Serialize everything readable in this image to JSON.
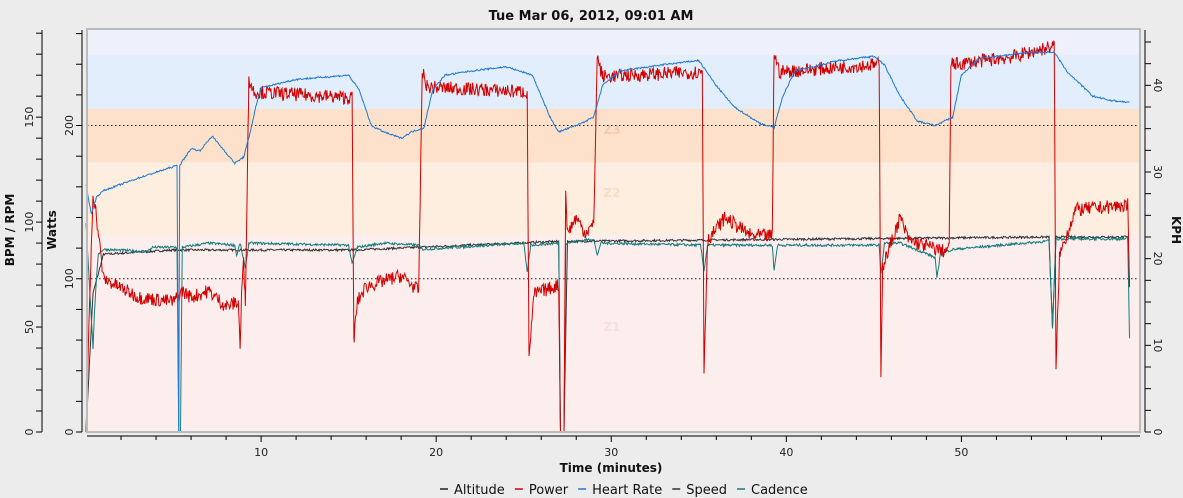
{
  "chart_data": {
    "type": "line",
    "title": "Tue Mar 06, 2012, 09:01 AM",
    "xlabel": "Time (minutes)",
    "xlim": [
      0,
      60.2
    ],
    "xticks": [
      10,
      20,
      30,
      40,
      50
    ],
    "axes": {
      "bpm": {
        "label": "BPM / RPM",
        "ylim": [
          0,
          192
        ],
        "ticks": [
          0,
          50,
          100,
          150
        ]
      },
      "watts": {
        "label": "Watts",
        "ylim": [
          0,
          263
        ],
        "ticks": [
          0,
          100,
          200
        ]
      },
      "kph": {
        "label": "KPH",
        "ylim": [
          0,
          46.5
        ],
        "ticks": [
          0,
          10,
          20,
          30,
          40
        ]
      }
    },
    "reference_lines_watts": [
      100,
      200
    ],
    "zones_watts": [
      {
        "name": "Z1",
        "from": 0,
        "to": 129,
        "color": "#fdeeee"
      },
      {
        "name": "Z2",
        "from": 129,
        "to": 176,
        "color": "#fdeee0"
      },
      {
        "name": "Z3",
        "from": 176,
        "to": 211,
        "color": "#fde1cb"
      },
      {
        "name": "Z4",
        "from": 211,
        "to": 246,
        "color": "#e2eefb"
      },
      {
        "name": "Z5",
        "from": 246,
        "to": 263,
        "color": "#eef0fc"
      }
    ],
    "legend": [
      "Altitude",
      "Power",
      "Heart Rate",
      "Speed",
      "Cadence"
    ],
    "legend_position": "bottom",
    "series": [
      {
        "name": "Altitude",
        "axis": "kph",
        "color": "#222222",
        "points": []
      },
      {
        "name": "Power",
        "axis": "watts",
        "color": "#d40000",
        "points": [
          [
            0,
            0
          ],
          [
            0.3,
            120
          ],
          [
            0.4,
            155
          ],
          [
            0.5,
            150
          ],
          [
            1,
            100
          ],
          [
            3,
            88
          ],
          [
            5,
            85
          ],
          [
            5.5,
            92
          ],
          [
            6,
            88
          ],
          [
            7,
            92
          ],
          [
            8,
            82
          ],
          [
            8.7,
            85
          ],
          [
            8.8,
            55
          ],
          [
            8.9,
            95
          ],
          [
            9.0,
            110
          ],
          [
            9.1,
            85
          ],
          [
            9.3,
            230
          ],
          [
            9.6,
            222
          ],
          [
            15.2,
            218
          ],
          [
            15.3,
            60
          ],
          [
            15.5,
            85
          ],
          [
            16,
            95
          ],
          [
            18,
            102
          ],
          [
            19,
            92
          ],
          [
            19.2,
            235
          ],
          [
            19.5,
            225
          ],
          [
            25.2,
            222
          ],
          [
            25.3,
            50
          ],
          [
            25.6,
            90
          ],
          [
            27,
            96
          ],
          [
            27.1,
            0
          ],
          [
            27.3,
            0
          ],
          [
            27.4,
            160
          ],
          [
            27.5,
            130
          ],
          [
            28,
            140
          ],
          [
            28.5,
            130
          ],
          [
            29,
            135
          ],
          [
            29.2,
            245
          ],
          [
            29.5,
            232
          ],
          [
            35.2,
            235
          ],
          [
            35.3,
            40
          ],
          [
            35.5,
            125
          ],
          [
            36.5,
            140
          ],
          [
            38,
            128
          ],
          [
            39.2,
            128
          ],
          [
            39.3,
            248
          ],
          [
            39.6,
            235
          ],
          [
            45.3,
            240
          ],
          [
            45.4,
            40
          ],
          [
            45.5,
            108
          ],
          [
            46.5,
            140
          ],
          [
            47,
            125
          ],
          [
            49,
            118
          ],
          [
            49.3,
            120
          ],
          [
            49.4,
            240
          ],
          [
            49.7,
            240
          ],
          [
            53,
            245
          ],
          [
            55.3,
            252
          ],
          [
            55.4,
            40
          ],
          [
            55.6,
            115
          ],
          [
            56.5,
            145
          ],
          [
            59.5,
            148
          ],
          [
            59.6,
            90
          ]
        ]
      },
      {
        "name": "Heart Rate",
        "axis": "bpm",
        "color": "#1f78d1",
        "points": [
          [
            0,
            118
          ],
          [
            0.3,
            104
          ],
          [
            0.6,
            112
          ],
          [
            1,
            115
          ],
          [
            3,
            121
          ],
          [
            5.2,
            127
          ],
          [
            5.3,
            0
          ],
          [
            5.35,
            127
          ],
          [
            6,
            135
          ],
          [
            6.5,
            134
          ],
          [
            7.2,
            141
          ],
          [
            8.5,
            128
          ],
          [
            9,
            131
          ],
          [
            9.3,
            140
          ],
          [
            9.7,
            155
          ],
          [
            10,
            164
          ],
          [
            12,
            168
          ],
          [
            15,
            170
          ],
          [
            15.6,
            163
          ],
          [
            16.3,
            146
          ],
          [
            17,
            143
          ],
          [
            18,
            140
          ],
          [
            18.6,
            143
          ],
          [
            19.3,
            145
          ],
          [
            19.8,
            163
          ],
          [
            20.5,
            170
          ],
          [
            22,
            172
          ],
          [
            24,
            174
          ],
          [
            25.5,
            170
          ],
          [
            26.5,
            150
          ],
          [
            27,
            143
          ],
          [
            28,
            146
          ],
          [
            29,
            150
          ],
          [
            29.5,
            165
          ],
          [
            30.5,
            172
          ],
          [
            33,
            175
          ],
          [
            35,
            177
          ],
          [
            36,
            165
          ],
          [
            37,
            155
          ],
          [
            38.5,
            147
          ],
          [
            39.3,
            145
          ],
          [
            39.8,
            160
          ],
          [
            40.5,
            172
          ],
          [
            43,
            177
          ],
          [
            45,
            179
          ],
          [
            45.6,
            175
          ],
          [
            46.5,
            160
          ],
          [
            47.5,
            148
          ],
          [
            48.5,
            146
          ],
          [
            49.5,
            150
          ],
          [
            50,
            170
          ],
          [
            51,
            178
          ],
          [
            54,
            181
          ],
          [
            55.3,
            181
          ],
          [
            56,
            172
          ],
          [
            57.5,
            160
          ],
          [
            58.5,
            158
          ],
          [
            59.6,
            157
          ]
        ]
      },
      {
        "name": "Speed",
        "axis": "kph",
        "color": "#333333",
        "points": [
          [
            0,
            0
          ],
          [
            0.4,
            16
          ],
          [
            1,
            20.5
          ],
          [
            5,
            21
          ],
          [
            9,
            21
          ],
          [
            15.3,
            21
          ],
          [
            27,
            22
          ],
          [
            27.1,
            0
          ],
          [
            27.3,
            0
          ],
          [
            27.5,
            22
          ],
          [
            55,
            22.5
          ],
          [
            55.2,
            12
          ],
          [
            55.4,
            22.5
          ],
          [
            59.5,
            22.5
          ],
          [
            59.6,
            17
          ]
        ]
      },
      {
        "name": "Cadence",
        "axis": "bpm",
        "color": "#137b7b",
        "points": [
          [
            0,
            100
          ],
          [
            0.2,
            70
          ],
          [
            0.4,
            40
          ],
          [
            0.5,
            60
          ],
          [
            0.7,
            85
          ],
          [
            1,
            87
          ],
          [
            3.5,
            86
          ],
          [
            3.8,
            88
          ],
          [
            5.2,
            88
          ],
          [
            5.3,
            0
          ],
          [
            5.4,
            0
          ],
          [
            5.5,
            88
          ],
          [
            7,
            90
          ],
          [
            8.5,
            89
          ],
          [
            8.6,
            84
          ],
          [
            8.8,
            90
          ],
          [
            9.1,
            78
          ],
          [
            9.3,
            90
          ],
          [
            15,
            89
          ],
          [
            15.2,
            80
          ],
          [
            15.5,
            88
          ],
          [
            17,
            90
          ],
          [
            19,
            89
          ],
          [
            19.2,
            87
          ],
          [
            25,
            90
          ],
          [
            25.2,
            76
          ],
          [
            25.4,
            89
          ],
          [
            27,
            90
          ],
          [
            27.1,
            0
          ],
          [
            27.3,
            0
          ],
          [
            27.4,
            90
          ],
          [
            29,
            92
          ],
          [
            29.2,
            84
          ],
          [
            29.4,
            90
          ],
          [
            35.1,
            89
          ],
          [
            35.3,
            77
          ],
          [
            35.5,
            89
          ],
          [
            39.2,
            89
          ],
          [
            39.3,
            77
          ],
          [
            39.5,
            89
          ],
          [
            45.3,
            89
          ],
          [
            45.4,
            75
          ],
          [
            45.6,
            90
          ],
          [
            46.5,
            90
          ],
          [
            48,
            85
          ],
          [
            48.5,
            83
          ],
          [
            48.6,
            73
          ],
          [
            48.8,
            85
          ],
          [
            49.5,
            87
          ],
          [
            55,
            91
          ],
          [
            55.2,
            50
          ],
          [
            55.4,
            92
          ],
          [
            59.5,
            92
          ],
          [
            59.6,
            45
          ]
        ]
      }
    ]
  }
}
